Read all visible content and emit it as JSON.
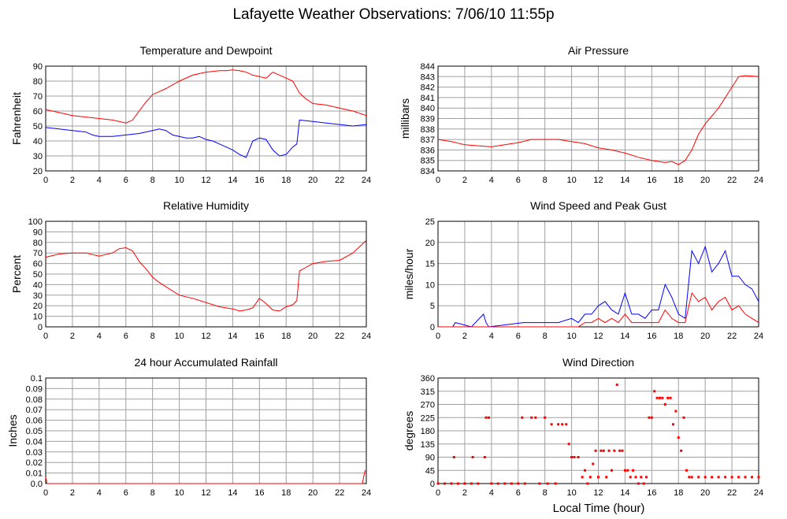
{
  "page": {
    "title": "Lafayette Weather Observations: 7/06/10 11:55p"
  },
  "colors": {
    "red": "#ff0000",
    "blue": "#0000ff",
    "grid": "#a0a0a0",
    "axis": "#000000"
  },
  "footer": {
    "xlabel": "Local Time (hour)"
  },
  "chart_data": [
    {
      "id": "temp",
      "type": "line",
      "title": "Temperature and Dewpoint",
      "ylabel": "Fahrenheit",
      "xlim": [
        0,
        24
      ],
      "ylim": [
        20,
        90
      ],
      "xticks": [
        "0",
        "2",
        "4",
        "6",
        "8",
        "10",
        "12",
        "14",
        "16",
        "18",
        "20",
        "22",
        "24"
      ],
      "yticks": [
        "20",
        "30",
        "40",
        "50",
        "60",
        "70",
        "80",
        "90"
      ],
      "series": [
        {
          "color": "#ff0000",
          "x": [
            0,
            1,
            2,
            3,
            4,
            5,
            5.5,
            6,
            6.5,
            7,
            7.5,
            8,
            8.5,
            9,
            10,
            11,
            12,
            13,
            13.5,
            14,
            14.5,
            15,
            15.5,
            16,
            16.5,
            17,
            17.5,
            18,
            18.5,
            19,
            19.5,
            20,
            21,
            22,
            23,
            24
          ],
          "y": [
            61,
            59,
            57,
            56,
            55,
            54,
            53,
            52,
            54,
            60,
            66,
            71,
            73,
            75,
            80,
            84,
            86,
            87,
            87,
            87.5,
            87,
            86,
            84,
            83,
            82,
            86,
            84,
            82,
            80,
            72,
            68,
            65,
            64,
            62,
            60,
            57
          ]
        },
        {
          "color": "#0000ff",
          "x": [
            0,
            1,
            2,
            3,
            3.5,
            4,
            5,
            6,
            7,
            8,
            8.5,
            9,
            9.5,
            10,
            10.5,
            11,
            11.5,
            12,
            12.5,
            13,
            13.5,
            14,
            14.5,
            15,
            15.5,
            16,
            16.5,
            17,
            17.5,
            18,
            18.5,
            18.8,
            19,
            20,
            21,
            22,
            23,
            24
          ],
          "y": [
            49,
            48,
            47,
            46,
            44,
            43,
            43,
            44,
            45,
            47,
            48,
            47,
            44,
            43,
            42,
            42,
            43,
            41,
            40,
            38,
            36,
            34,
            31,
            29,
            40,
            42,
            41,
            34,
            30,
            31,
            36,
            38,
            54,
            53,
            52,
            51,
            50,
            51
          ]
        }
      ]
    },
    {
      "id": "pressure",
      "type": "line",
      "title": "Air Pressure",
      "ylabel": "millibars",
      "xlim": [
        0,
        24
      ],
      "ylim": [
        834,
        844
      ],
      "xticks": [
        "0",
        "2",
        "4",
        "6",
        "8",
        "10",
        "12",
        "14",
        "16",
        "18",
        "20",
        "22",
        "24"
      ],
      "yticks": [
        "834",
        "835",
        "836",
        "837",
        "838",
        "839",
        "840",
        "841",
        "842",
        "843",
        "844"
      ],
      "series": [
        {
          "color": "#ff0000",
          "x": [
            0,
            1,
            2,
            3,
            4,
            5,
            6,
            7,
            8,
            9,
            10,
            11,
            12,
            13,
            14,
            15,
            16,
            17,
            17.5,
            18,
            18.5,
            19,
            19.5,
            20,
            21,
            22,
            22.5,
            23,
            24
          ],
          "y": [
            837,
            836.8,
            836.5,
            836.4,
            836.3,
            836.5,
            836.7,
            837,
            837,
            837,
            836.8,
            836.6,
            836.2,
            836,
            835.7,
            835.3,
            835,
            834.8,
            834.9,
            834.6,
            835,
            836,
            837.5,
            838.5,
            840,
            842,
            843,
            843.1,
            843
          ]
        }
      ]
    },
    {
      "id": "humidity",
      "type": "line",
      "title": "Relative Humidity",
      "ylabel": "Percent",
      "xlim": [
        0,
        24
      ],
      "ylim": [
        0,
        100
      ],
      "xticks": [
        "0",
        "2",
        "4",
        "6",
        "8",
        "10",
        "12",
        "14",
        "16",
        "18",
        "20",
        "22",
        "24"
      ],
      "yticks": [
        "0",
        "10",
        "20",
        "30",
        "40",
        "50",
        "60",
        "70",
        "80",
        "90",
        "100"
      ],
      "series": [
        {
          "color": "#ff0000",
          "x": [
            0,
            1,
            2,
            3,
            4,
            5,
            5.5,
            6,
            6.5,
            7,
            7.5,
            8,
            8.5,
            9,
            10,
            11,
            12,
            13,
            14,
            14.5,
            15,
            15.5,
            16,
            16.5,
            17,
            17.5,
            18,
            18.5,
            18.8,
            19,
            20,
            21,
            22,
            23,
            24
          ],
          "y": [
            66,
            69,
            70,
            70,
            67,
            70,
            74,
            75,
            72,
            62,
            55,
            47,
            42,
            38,
            30,
            27,
            23,
            19,
            17,
            15,
            16,
            18,
            27,
            22,
            16,
            15,
            19,
            21,
            25,
            53,
            60,
            62,
            63,
            70,
            82
          ]
        }
      ]
    },
    {
      "id": "wind",
      "type": "line",
      "title": "Wind Speed and Peak Gust",
      "ylabel": "miles/hour",
      "xlim": [
        0,
        24
      ],
      "ylim": [
        0,
        25
      ],
      "xticks": [
        "0",
        "2",
        "4",
        "6",
        "8",
        "10",
        "12",
        "14",
        "16",
        "18",
        "20",
        "22",
        "24"
      ],
      "yticks": [
        "0",
        "5",
        "10",
        "15",
        "20",
        "25"
      ],
      "series": [
        {
          "color": "#0000ff",
          "x": [
            0,
            1.1,
            1.3,
            2.5,
            3.4,
            3.6,
            3.8,
            6.4,
            7.2,
            8,
            9,
            10,
            10.5,
            11,
            11.5,
            12,
            12.5,
            13,
            13.5,
            14,
            14.5,
            15,
            15.5,
            16,
            16.5,
            17,
            17.5,
            18,
            18.5,
            19,
            19.5,
            20,
            20.5,
            21,
            21.5,
            22,
            22.5,
            23,
            23.5,
            24
          ],
          "y": [
            0,
            0,
            1,
            0,
            3,
            1,
            0,
            1,
            1,
            1,
            1,
            2,
            1,
            3,
            3,
            5,
            6,
            4,
            3,
            8,
            3,
            3,
            2,
            4,
            4,
            10,
            7,
            3,
            2,
            18,
            15,
            19,
            13,
            15,
            18,
            12,
            12,
            10,
            9,
            6
          ]
        },
        {
          "color": "#ff0000",
          "x": [
            0,
            10,
            10.5,
            11,
            11.5,
            12,
            12.5,
            13,
            13.5,
            14,
            14.5,
            15,
            16,
            16.5,
            17,
            17.5,
            18,
            18.5,
            19,
            19.5,
            20,
            20.5,
            21,
            21.5,
            22,
            22.5,
            23,
            23.5,
            24
          ],
          "y": [
            0,
            0,
            0,
            1,
            1,
            2,
            1,
            2,
            1,
            3,
            1,
            1,
            1,
            1,
            4,
            2,
            1,
            1,
            8,
            6,
            7,
            4,
            6,
            7,
            4,
            5,
            3,
            2,
            1
          ]
        }
      ]
    },
    {
      "id": "rain",
      "type": "line",
      "title": "24 hour Accumulated Rainfall",
      "ylabel": "Inches",
      "xlim": [
        0,
        24
      ],
      "ylim": [
        0,
        0.1
      ],
      "xticks": [
        "0",
        "2",
        "4",
        "6",
        "8",
        "10",
        "12",
        "14",
        "16",
        "18",
        "20",
        "22",
        "24"
      ],
      "yticks": [
        "0.0",
        "0.01",
        "0.02",
        "0.03",
        "0.04",
        "0.05",
        "0.06",
        "0.07",
        "0.08",
        "0.09",
        "0.1"
      ],
      "series": [
        {
          "color": "#ff0000",
          "x": [
            0,
            0.1,
            23.7,
            23.9,
            24
          ],
          "y": [
            0.006,
            0,
            0,
            0.012,
            0.012
          ]
        }
      ]
    },
    {
      "id": "direction",
      "type": "scatter",
      "title": "Wind Direction",
      "ylabel": "degrees",
      "xlim": [
        0,
        24
      ],
      "ylim": [
        0,
        360
      ],
      "xticks": [
        "0",
        "2",
        "4",
        "6",
        "8",
        "10",
        "12",
        "14",
        "16",
        "18",
        "20",
        "22",
        "24"
      ],
      "yticks": [
        "0",
        "45",
        "90",
        "135",
        "180",
        "225",
        "270",
        "315",
        "360"
      ],
      "series": [
        {
          "color": "#ff0000",
          "x": [
            0,
            0.5,
            1,
            1.2,
            1.5,
            2,
            2.5,
            2.6,
            3,
            3.5,
            3.6,
            3.8,
            4,
            4.5,
            5,
            5.5,
            6,
            6.3,
            6.5,
            7,
            7.3,
            7.6,
            8,
            8.2,
            8.5,
            8.8,
            9,
            9.3,
            9.6,
            9.8,
            10,
            10.2,
            10.5,
            10.8,
            11,
            11.2,
            11.4,
            11.6,
            11.8,
            12,
            12.2,
            12.4,
            12.6,
            12.8,
            13,
            13.2,
            13.4,
            13.6,
            13.8,
            14,
            14.2,
            14.4,
            14.6,
            14.8,
            15,
            15.2,
            15.4,
            15.6,
            15.8,
            16,
            16.2,
            16.4,
            16.6,
            16.8,
            17,
            17.2,
            17.4,
            17.6,
            17.8,
            18,
            18.2,
            18.4,
            18.6,
            18.8,
            19,
            19.5,
            20,
            20.5,
            21,
            21.5,
            22,
            22.5,
            23,
            23.5,
            24
          ],
          "y": [
            0,
            0,
            0,
            90,
            0,
            0,
            0,
            90,
            0,
            90,
            225,
            225,
            0,
            0,
            0,
            0,
            0,
            225,
            0,
            225,
            225,
            0,
            225,
            0,
            202,
            0,
            202,
            202,
            202,
            135,
            90,
            90,
            90,
            22,
            45,
            0,
            22,
            67,
            112,
            22,
            112,
            112,
            22,
            112,
            45,
            112,
            337,
            112,
            112,
            45,
            45,
            22,
            45,
            22,
            0,
            22,
            0,
            22,
            225,
            225,
            315,
            292,
            292,
            292,
            270,
            292,
            292,
            202,
            247,
            157,
            112,
            225,
            45,
            22,
            22,
            22,
            22,
            22,
            22,
            22,
            22,
            22,
            22,
            22,
            22
          ]
        }
      ]
    }
  ]
}
